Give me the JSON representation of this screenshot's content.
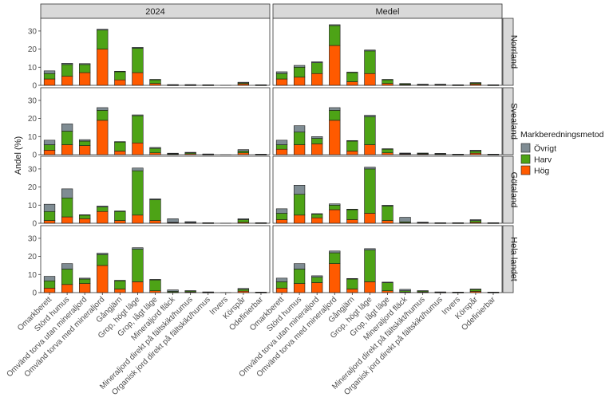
{
  "chart_data": {
    "type": "bar",
    "stacked": true,
    "ylabel": "Andel (%)",
    "xlabel": "",
    "ylim": [
      0,
      37
    ],
    "y_ticks": [
      0,
      10,
      20,
      30
    ],
    "legend_title": "Markberedningsmetod",
    "legend_position": "right",
    "series": [
      {
        "name": "Övrigt",
        "color": "#7f8c93"
      },
      {
        "name": "Harv",
        "color": "#4da316"
      },
      {
        "name": "Hög",
        "color": "#ff5a00"
      }
    ],
    "columns": [
      "2024",
      "Medel"
    ],
    "rows": [
      "Norrland",
      "Svealand",
      "Götaland",
      "Hela landet"
    ],
    "categories": [
      "Omarkberett",
      "Störd humus",
      "Omvänd torva utan mineraljord",
      "Omvänd torva med mineraljord",
      "Gångjärn",
      "Grop, högt läge",
      "Grop, lågt läge",
      "Mineraljord fläck",
      "Mineraljord direkt på fältskikt/humus",
      "Organisk jord direkt på fältskikt/humus",
      "Invers",
      "Körspår",
      "Odefinierbar"
    ],
    "panels": [
      {
        "row": "Norrland",
        "col": "2024",
        "Hög": [
          3.5,
          5.0,
          7.0,
          20.0,
          3.0,
          7.0,
          1.0,
          0.1,
          0.1,
          0.1,
          0,
          0.8,
          0.1
        ],
        "Harv": [
          3.0,
          6.5,
          4.5,
          10.5,
          4.5,
          13.5,
          2.0,
          0.2,
          0.2,
          0.1,
          0,
          0.5,
          0.1
        ],
        "Övrigt": [
          1.5,
          0.7,
          0.5,
          0.5,
          0.3,
          0.5,
          0.3,
          0.1,
          0.1,
          0.1,
          0,
          0.4,
          0.1
        ]
      },
      {
        "row": "Norrland",
        "col": "Medel",
        "Hög": [
          3.5,
          4.5,
          6.5,
          22.0,
          2.0,
          6.5,
          1.0,
          0.3,
          0.2,
          0.2,
          0.1,
          0.7,
          0.1
        ],
        "Harv": [
          3.0,
          5.5,
          6.0,
          11.0,
          5.0,
          12.5,
          2.0,
          0.5,
          0.3,
          0.3,
          0.1,
          0.6,
          0.1
        ],
        "Övrigt": [
          1.0,
          1.0,
          0.5,
          0.5,
          0.3,
          0.5,
          0.3,
          0.2,
          0.1,
          0.1,
          0.1,
          0.2,
          0.1
        ]
      },
      {
        "row": "Svealand",
        "col": "2024",
        "Hög": [
          2.5,
          5.5,
          5.0,
          19.0,
          2.0,
          6.5,
          1.0,
          0.2,
          0.5,
          0.1,
          0,
          1.0,
          0.1
        ],
        "Harv": [
          3.0,
          7.5,
          2.5,
          5.5,
          5.0,
          15.0,
          2.5,
          0.3,
          0.6,
          0.2,
          0,
          1.0,
          0.1
        ],
        "Övrigt": [
          2.5,
          4.0,
          0.8,
          1.5,
          0.2,
          0.5,
          0.5,
          0.3,
          0.2,
          0.1,
          0,
          0.8,
          0.1
        ]
      },
      {
        "row": "Svealand",
        "col": "Medel",
        "Hög": [
          3.0,
          5.5,
          6.0,
          19.0,
          2.0,
          5.5,
          1.0,
          0.3,
          0.3,
          0.2,
          0.1,
          0.8,
          0.1
        ],
        "Harv": [
          2.5,
          7.0,
          3.0,
          5.5,
          5.5,
          15.5,
          2.0,
          0.3,
          0.4,
          0.3,
          0.1,
          1.2,
          0.1
        ],
        "Övrigt": [
          2.5,
          3.5,
          1.0,
          1.5,
          0.3,
          0.8,
          0.3,
          0.3,
          0.2,
          0.2,
          0.1,
          0.5,
          0.1
        ]
      },
      {
        "row": "Götaland",
        "col": "2024",
        "Hög": [
          1.5,
          3.5,
          2.5,
          6.5,
          1.5,
          4.5,
          1.5,
          0.3,
          0.2,
          0.1,
          0,
          0.5,
          0.1
        ],
        "Harv": [
          5.0,
          10.5,
          2.0,
          2.5,
          5.0,
          24.5,
          11.5,
          0.2,
          0.2,
          0.1,
          0,
          1.5,
          0.1
        ],
        "Övrigt": [
          4.0,
          5.0,
          0.2,
          0.5,
          0.3,
          1.5,
          0.5,
          2.0,
          0.5,
          0.1,
          0,
          0.5,
          0.1
        ]
      },
      {
        "row": "Götaland",
        "col": "Medel",
        "Hög": [
          2.0,
          4.5,
          3.0,
          7.5,
          2.0,
          5.5,
          1.5,
          0.3,
          0.2,
          0.1,
          0.1,
          0.5,
          0.1
        ],
        "Harv": [
          3.5,
          11.5,
          2.0,
          2.5,
          5.5,
          24.5,
          8.0,
          0.5,
          0.2,
          0.1,
          0.1,
          1.0,
          0.1
        ],
        "Övrigt": [
          2.5,
          5.0,
          0.3,
          0.7,
          0.3,
          1.0,
          0.5,
          2.5,
          0.2,
          0.1,
          0.1,
          0.5,
          0.1
        ]
      },
      {
        "row": "Hela landet",
        "col": "2024",
        "Hög": [
          2.5,
          4.5,
          5.0,
          15.0,
          2.0,
          6.0,
          1.0,
          0.2,
          0.3,
          0.1,
          0,
          0.8,
          0.1
        ],
        "Harv": [
          4.0,
          8.5,
          2.5,
          6.0,
          4.5,
          18.0,
          6.0,
          0.5,
          0.5,
          0.2,
          0,
          1.0,
          0.1
        ],
        "Övrigt": [
          2.5,
          3.0,
          0.5,
          0.8,
          0.3,
          0.8,
          0.3,
          0.8,
          0.3,
          0.1,
          0,
          0.5,
          0.1
        ]
      },
      {
        "row": "Hela landet",
        "col": "Medel",
        "Hög": [
          2.5,
          5.0,
          5.5,
          16.0,
          2.0,
          6.0,
          1.0,
          0.3,
          0.3,
          0.1,
          0.1,
          0.7,
          0.1
        ],
        "Harv": [
          3.5,
          8.0,
          3.0,
          6.0,
          5.5,
          17.5,
          4.5,
          0.7,
          0.5,
          0.2,
          0.1,
          1.0,
          0.1
        ],
        "Övrigt": [
          2.0,
          3.0,
          0.8,
          1.0,
          0.3,
          0.8,
          0.3,
          0.8,
          0.3,
          0.1,
          0.1,
          0.3,
          0.1
        ]
      }
    ]
  }
}
